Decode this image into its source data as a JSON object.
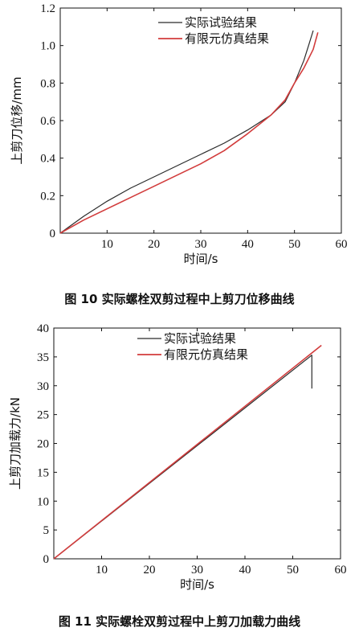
{
  "figures": [
    {
      "caption": "图 10   实际螺栓双剪过程中上剪刀位移曲线"
    },
    {
      "caption": "图 11   实际螺栓双剪过程中上剪刀加载力曲线"
    }
  ],
  "chart_data": [
    {
      "type": "line",
      "title": "",
      "xlabel": "时间/s",
      "ylabel": "上剪刀位移/mm",
      "xlim": [
        0,
        60
      ],
      "ylim": [
        0,
        1.2
      ],
      "xticks": [
        10,
        20,
        30,
        40,
        50,
        60
      ],
      "yticks": [
        0,
        0.2,
        0.4,
        0.6,
        0.8,
        1.0,
        1.2
      ],
      "ytick_labels": [
        "0",
        "0.2",
        "0.4",
        "0.6",
        "0.8",
        "1.0",
        "1.2"
      ],
      "legend_position": "top-right",
      "series": [
        {
          "name": "实际试验结果",
          "color": "#2b2b2b",
          "x": [
            0,
            5,
            10,
            15,
            20,
            25,
            30,
            35,
            40,
            45,
            48,
            50,
            52,
            53,
            54
          ],
          "y": [
            0,
            0.09,
            0.17,
            0.24,
            0.3,
            0.36,
            0.42,
            0.48,
            0.55,
            0.63,
            0.7,
            0.8,
            0.92,
            1.0,
            1.08
          ]
        },
        {
          "name": "有限元仿真结果",
          "color": "#d23c3c",
          "x": [
            0,
            5,
            10,
            15,
            20,
            25,
            30,
            35,
            40,
            45,
            48,
            50,
            52,
            54,
            55
          ],
          "y": [
            0,
            0.07,
            0.13,
            0.19,
            0.25,
            0.31,
            0.37,
            0.44,
            0.53,
            0.63,
            0.71,
            0.8,
            0.88,
            0.98,
            1.07
          ]
        }
      ]
    },
    {
      "type": "line",
      "title": "",
      "xlabel": "时间/s",
      "ylabel": "上剪刀加载力/kN",
      "xlim": [
        0,
        60
      ],
      "ylim": [
        0,
        40
      ],
      "xticks": [
        10,
        20,
        30,
        40,
        50,
        60
      ],
      "yticks": [
        0,
        5,
        10,
        15,
        20,
        25,
        30,
        35,
        40
      ],
      "ytick_labels": [
        "0",
        "5",
        "10",
        "15",
        "20",
        "25",
        "30",
        "35",
        "40"
      ],
      "legend_position": "top-right",
      "series": [
        {
          "name": "实际试验结果",
          "color": "#2b2b2b",
          "x": [
            0,
            54,
            54,
            54
          ],
          "y": [
            0,
            35.3,
            35.3,
            29.5
          ]
        },
        {
          "name": "有限元仿真结果",
          "color": "#d23c3c",
          "x": [
            0,
            56
          ],
          "y": [
            0,
            37
          ]
        }
      ]
    }
  ]
}
